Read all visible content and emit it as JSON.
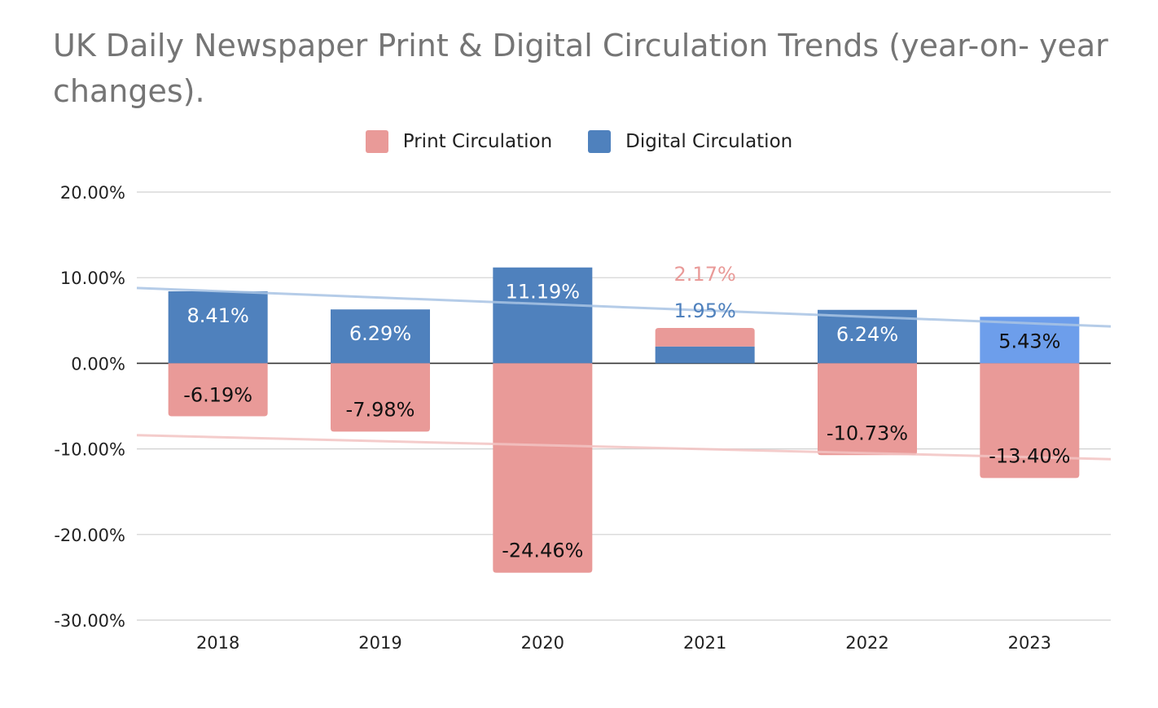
{
  "chart_data": {
    "type": "bar",
    "stacked": true,
    "title": "UK Daily Newspaper Print & Digital Circulation Trends (year-on- year changes).",
    "xlabel": "",
    "ylabel": "",
    "categories": [
      "2018",
      "2019",
      "2020",
      "2021",
      "2022",
      "2023"
    ],
    "ylim": [
      -30,
      20
    ],
    "yticks": [
      20,
      10,
      0,
      -10,
      -20,
      -30
    ],
    "ytick_labels": [
      "20.00%",
      "10.00%",
      "0.00%",
      "-10.00%",
      "-20.00%",
      "-30.00%"
    ],
    "grid": true,
    "legend_position": "top-center",
    "series": [
      {
        "name": "Print Circulation",
        "color": "#E99A98",
        "values": [
          -6.19,
          -7.98,
          -24.46,
          2.17,
          -10.73,
          -13.4
        ],
        "labels": [
          "-6.19%",
          "-7.98%",
          "-24.46%",
          "2.17%",
          "-10.73%",
          "-13.40%"
        ],
        "trendline": {
          "start": -8.4,
          "end": -11.2,
          "color": "#F3C4C3"
        }
      },
      {
        "name": "Digital Circulation",
        "color": "#4F81BD",
        "highlight_color": "#6D9EEB",
        "values": [
          8.41,
          6.29,
          11.19,
          1.95,
          6.24,
          5.43
        ],
        "labels": [
          "8.41%",
          "6.29%",
          "11.19%",
          "1.95%",
          "6.24%",
          "5.43%"
        ],
        "trendline": {
          "start": 8.8,
          "end": 4.3,
          "color": "#A9C4E4"
        }
      }
    ]
  }
}
